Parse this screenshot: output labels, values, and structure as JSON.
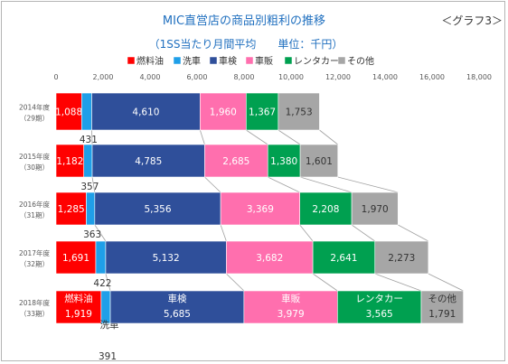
{
  "title": "MIC直営店の商品別粗利の推移",
  "graph_tag": "＜グラフ3＞",
  "subtitle": "（1SS当たり月間平均　　単位：千円）",
  "colors": {
    "燃料油": "#ff0000",
    "洗車": "#1f9fe8",
    "車検": "#2f4f9a",
    "車販": "#ff6fae",
    "レンタカー": "#00a050",
    "その他": "#a6a6a6"
  },
  "chart_data": {
    "type": "bar",
    "orientation": "horizontal",
    "stacked": true,
    "xlim": [
      0,
      18000
    ],
    "x_ticks": [
      "0",
      "2,000",
      "4,000",
      "6,000",
      "8,000",
      "10,000",
      "12,000",
      "14,000",
      "16,000",
      "18,000"
    ],
    "categories": [
      {
        "year": "2014年度",
        "period": "（29期）"
      },
      {
        "year": "2015年度",
        "period": "（30期）"
      },
      {
        "year": "2016年度",
        "period": "（31期）"
      },
      {
        "year": "2017年度",
        "period": "（32期）"
      },
      {
        "year": "2018年度",
        "period": "（33期）"
      }
    ],
    "series": [
      {
        "name": "燃料油",
        "values": [
          1088,
          1182,
          1285,
          1691,
          1919
        ],
        "labels": [
          "1,088",
          "1,182",
          "1,285",
          "1,691",
          "1,919"
        ]
      },
      {
        "name": "洗車",
        "values": [
          431,
          357,
          363,
          422,
          391
        ],
        "labels": [
          "431",
          "357",
          "363",
          "422",
          "391"
        ]
      },
      {
        "name": "車検",
        "values": [
          4610,
          4785,
          5356,
          5132,
          5685
        ],
        "labels": [
          "4,610",
          "4,785",
          "5,356",
          "5,132",
          "5,685"
        ]
      },
      {
        "name": "車販",
        "values": [
          1960,
          2685,
          3369,
          3682,
          3979
        ],
        "labels": [
          "1,960",
          "2,685",
          "3,369",
          "3,682",
          "3,979"
        ]
      },
      {
        "name": "レンタカー",
        "values": [
          1367,
          1380,
          2208,
          2641,
          3565
        ],
        "labels": [
          "1,367",
          "1,380",
          "2,208",
          "2,641",
          "3,565"
        ]
      },
      {
        "name": "その他",
        "values": [
          1753,
          1601,
          1970,
          2273,
          1791
        ],
        "labels": [
          "1,753",
          "1,601",
          "1,970",
          "2,273",
          "1,791"
        ]
      }
    ],
    "legend": [
      "燃料油",
      "洗車",
      "車検",
      "車販",
      "レンタカー",
      "その他"
    ],
    "legend_position": "top",
    "series_lines": true,
    "gridlines": false
  }
}
